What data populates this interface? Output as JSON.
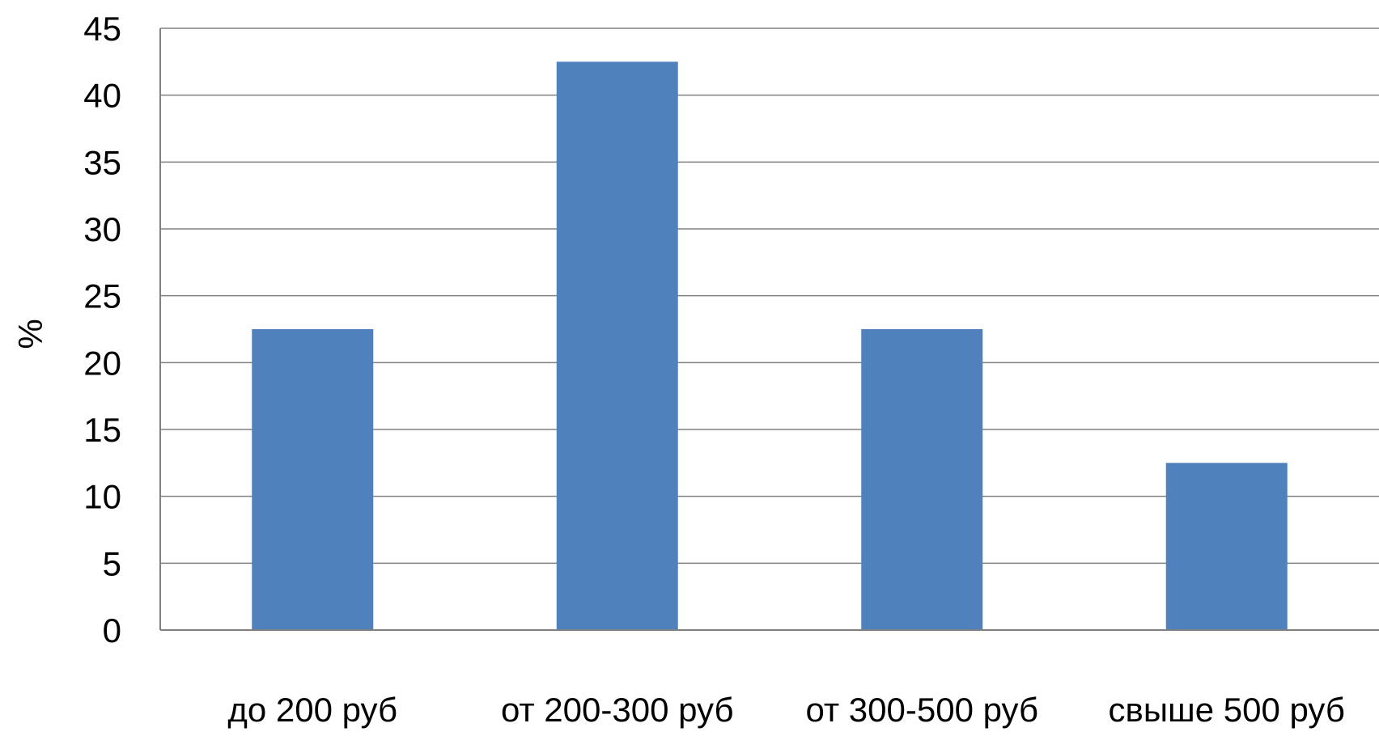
{
  "chart_data": {
    "type": "bar",
    "categories": [
      "до 200 руб",
      "от 200-300 руб",
      "от 300-500 руб",
      "свыше 500 руб"
    ],
    "values": [
      22.5,
      42.5,
      22.5,
      12.5
    ],
    "title": "",
    "xlabel": "",
    "ylabel": "%",
    "ylim": [
      0,
      45
    ],
    "yticks": [
      "0",
      "5",
      "10",
      "15",
      "20",
      "25",
      "30",
      "35",
      "40",
      "45"
    ],
    "grid": true,
    "legend": "none",
    "bar_color": "#4F81BD",
    "gridline_color": "#808080"
  }
}
